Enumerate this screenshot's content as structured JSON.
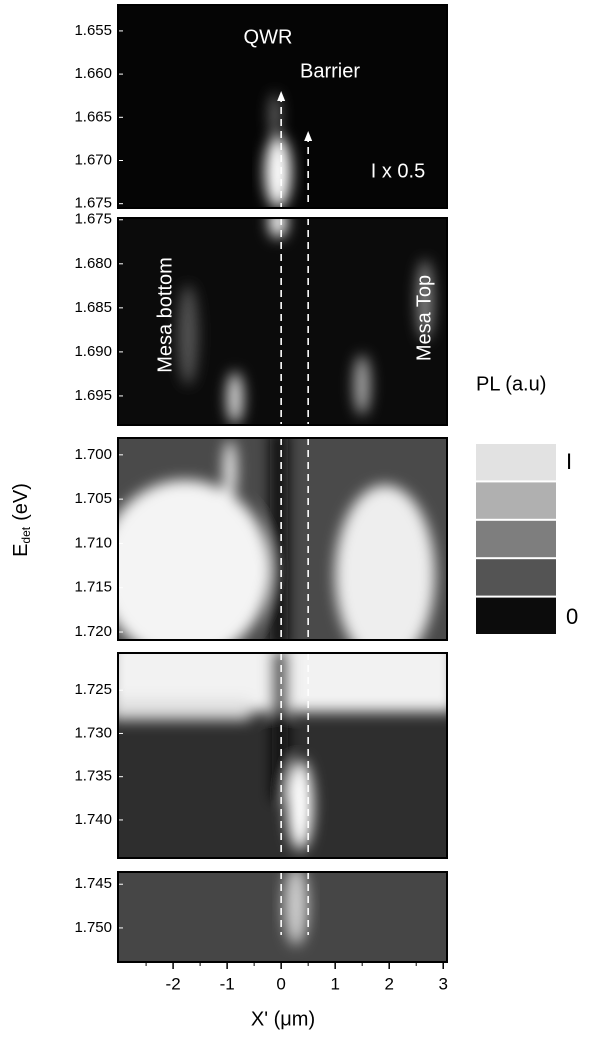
{
  "chart_data": {
    "type": "heatmap-stack",
    "xlabel": "X' (μm)",
    "ylabel": {
      "main": "E",
      "sub": "det",
      "unit": "(eV)"
    },
    "xlim": [
      -3.02,
      3.07
    ],
    "xticks": [
      -2,
      -1,
      0,
      1,
      2,
      3
    ],
    "guides": [
      0,
      0.5
    ],
    "panels": [
      {
        "ylim": [
          1.652,
          1.6755
        ],
        "yticks": [
          1.655,
          {
            "value": 1.66,
            "label": "1.660"
          },
          1.665,
          {
            "value": 1.67,
            "label": "1.670"
          },
          1.675
        ]
      },
      {
        "ylim": [
          1.6748,
          1.6983
        ],
        "yticks": [
          1.675,
          {
            "value": 1.68,
            "label": "1.680"
          },
          1.685,
          {
            "value": 1.69,
            "label": "1.690"
          },
          1.695
        ]
      },
      {
        "ylim": [
          1.6981,
          1.7209
        ],
        "yticks": [
          {
            "value": 1.7,
            "label": "1.700"
          },
          1.705,
          {
            "value": 1.71,
            "label": "1.710"
          },
          1.715,
          {
            "value": 1.72,
            "label": "1.720"
          }
        ]
      },
      {
        "ylim": [
          1.7207,
          1.7444
        ],
        "yticks": [
          1.725,
          {
            "value": 1.73,
            "label": "1.730"
          },
          1.735,
          {
            "value": 1.74,
            "label": "1.740"
          }
        ]
      },
      {
        "ylim": [
          1.7436,
          1.7539
        ],
        "yticks": [
          1.745,
          {
            "value": 1.75,
            "label": "1.750"
          }
        ]
      }
    ],
    "annotations": [
      "QWR",
      "Barrier",
      "I x 0.5",
      "Mesa bottom",
      "Mesa Top"
    ],
    "colorbar": {
      "title": "PL (a.u)",
      "max_label": "I",
      "min_label": "0",
      "colors": [
        "#e2e2e2",
        "#b0b0b0",
        "#7e7e7e",
        "#545454",
        "#0c0c0c"
      ]
    }
  }
}
